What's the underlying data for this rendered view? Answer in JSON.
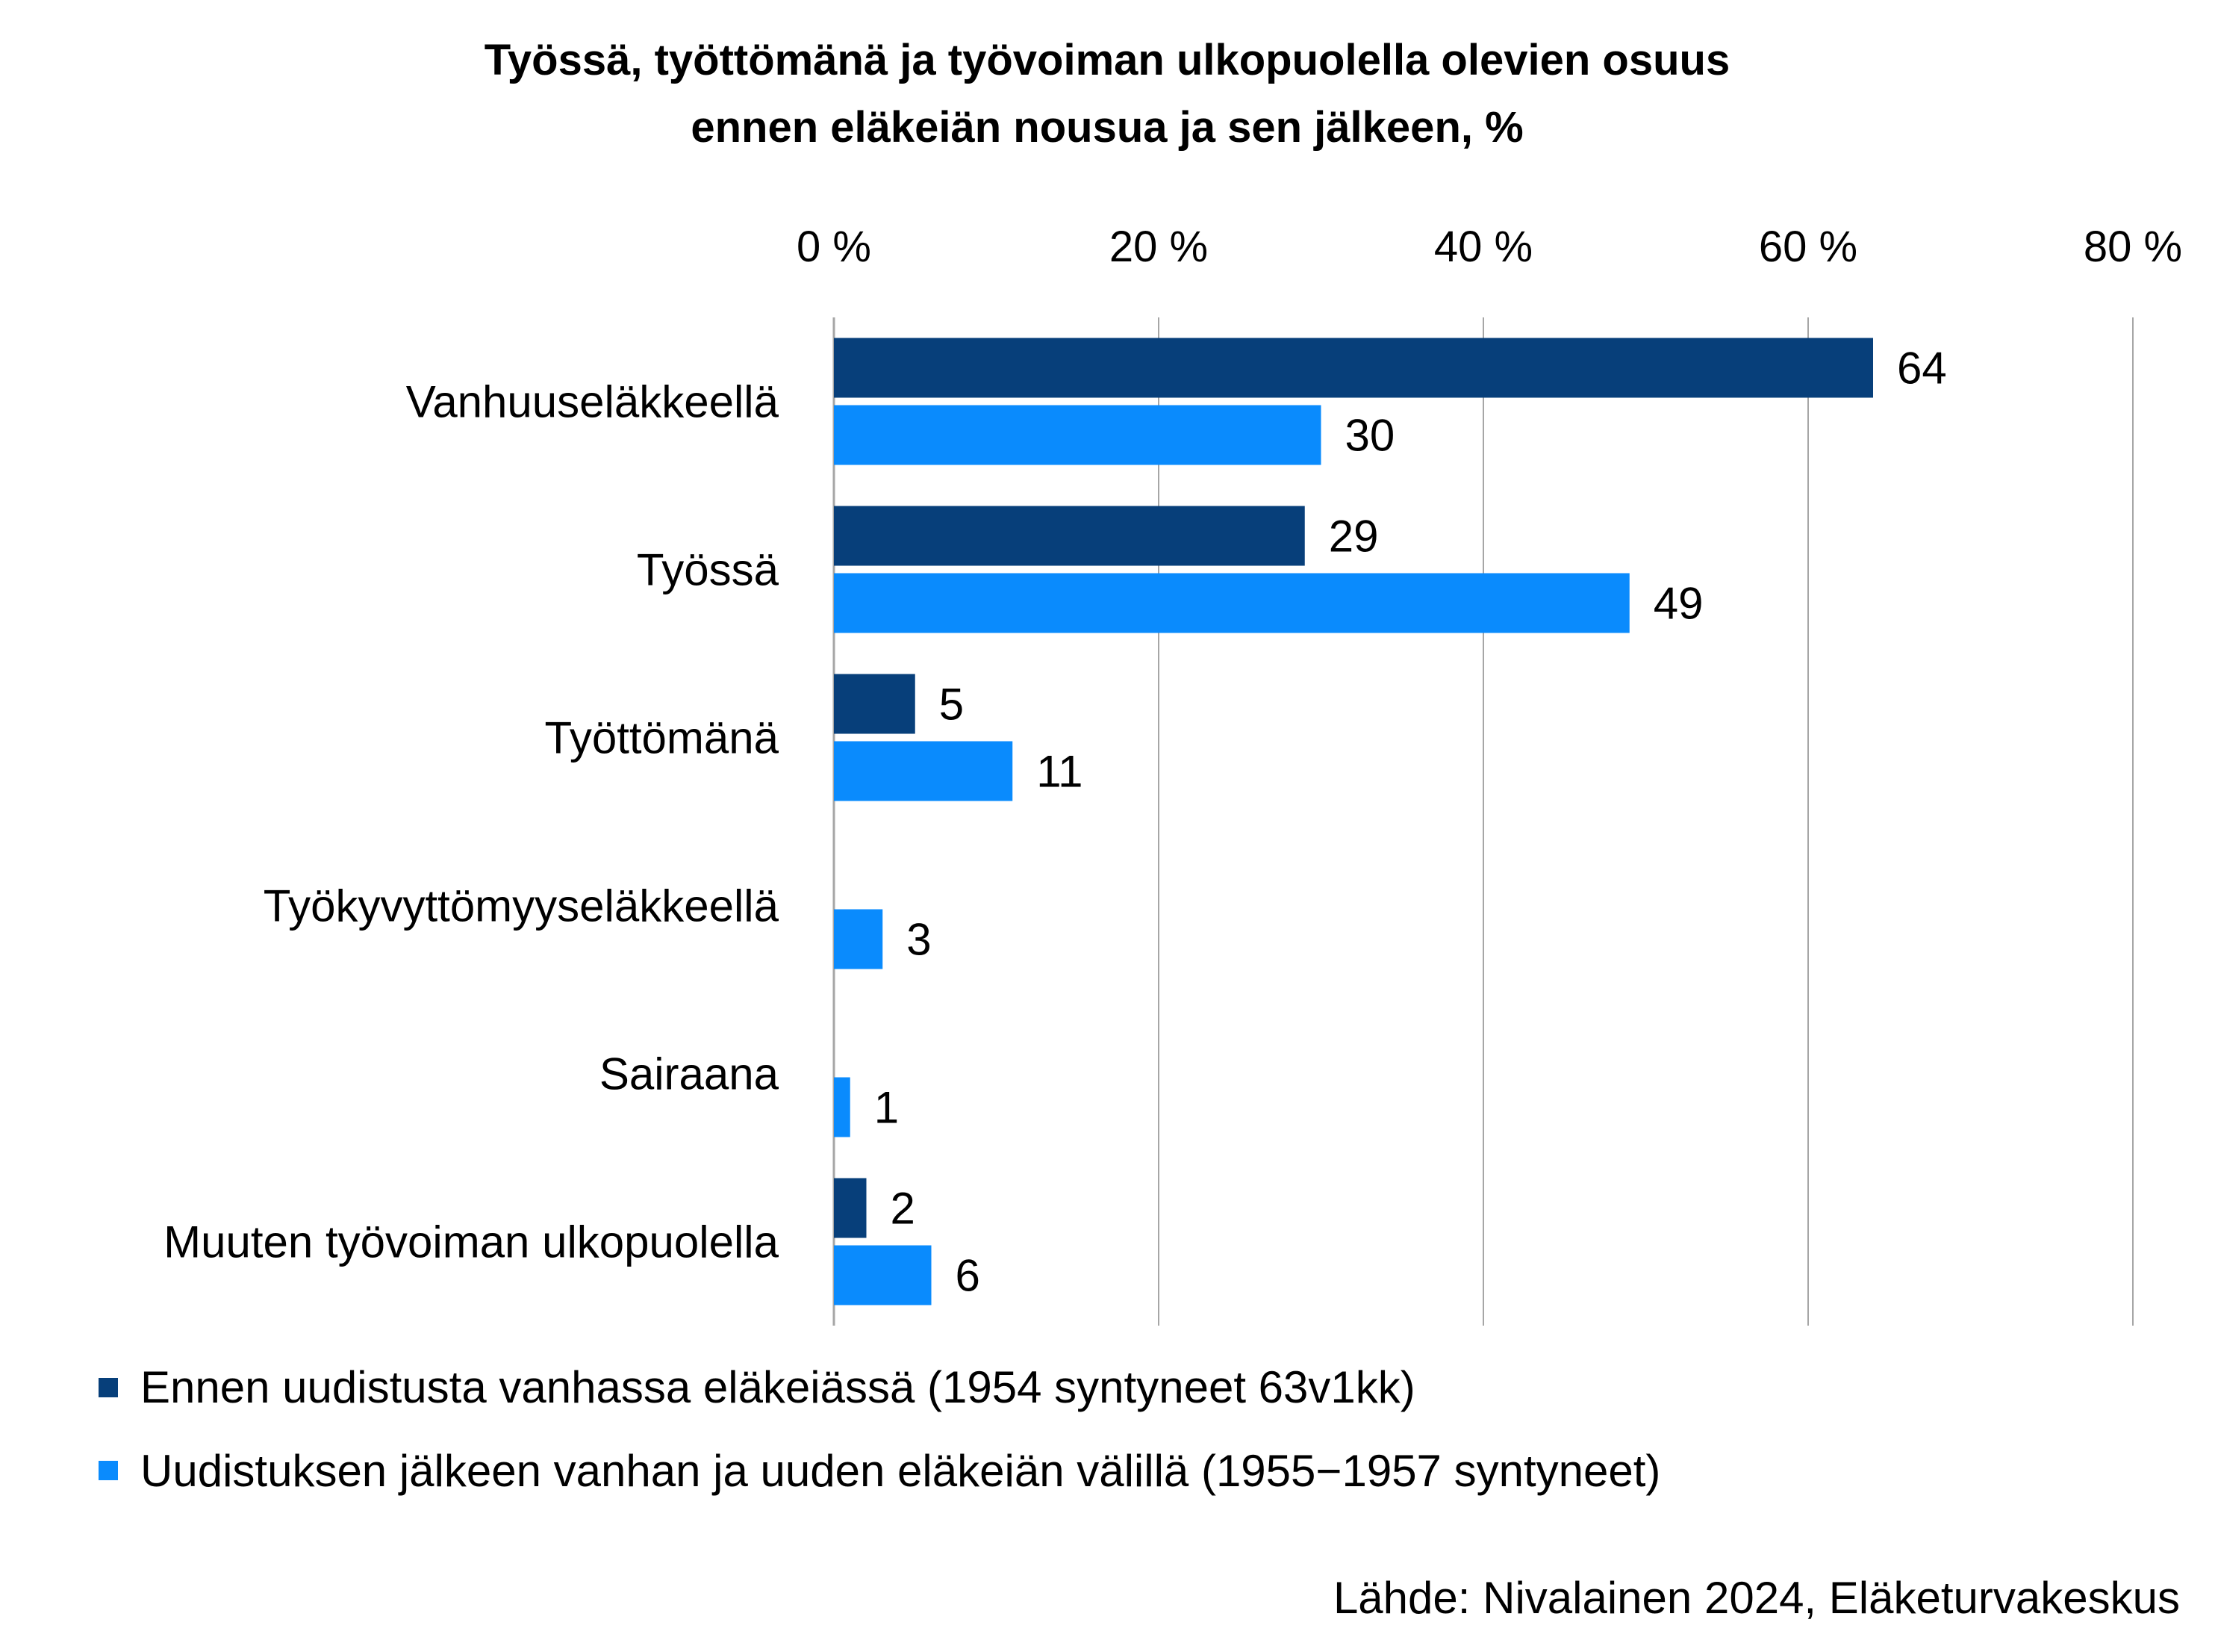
{
  "chart_data": {
    "type": "bar",
    "orientation": "horizontal",
    "title": [
      "Työssä, työttömänä ja työvoiman ulkopuolella olevien osuus",
      "ennen eläkeiän nousua ja sen jälkeen, %"
    ],
    "categories": [
      "Vanhuuseläkkeellä",
      "Työssä",
      "Työttömänä",
      "Työkyvyttömyyseläkkeellä",
      "Sairaana",
      "Muuten työvoiman ulkopuolella"
    ],
    "series": [
      {
        "name": "Ennen uudistusta vanhassa eläkeiässä (1954 syntyneet 63v1kk)",
        "color": "#073f7a",
        "values": [
          64,
          29,
          5,
          null,
          null,
          2
        ]
      },
      {
        "name": "Uudistuksen jälkeen vanhan ja uuden eläkeiän välillä (1955−1957 syntyneet)",
        "color": "#0a8bfd",
        "values": [
          30,
          49,
          11,
          3,
          1,
          6
        ]
      }
    ],
    "xlim": [
      0,
      80
    ],
    "xticks": [
      0,
      20,
      40,
      60,
      80
    ],
    "xtick_labels": [
      "0 %",
      "20 %",
      "40 %",
      "60 %",
      "80 %"
    ],
    "xaxis_position": "top",
    "grid": true,
    "legend_position": "bottom-left",
    "source": "Lähde: Nivalainen 2024, Eläketurvakeskus"
  }
}
